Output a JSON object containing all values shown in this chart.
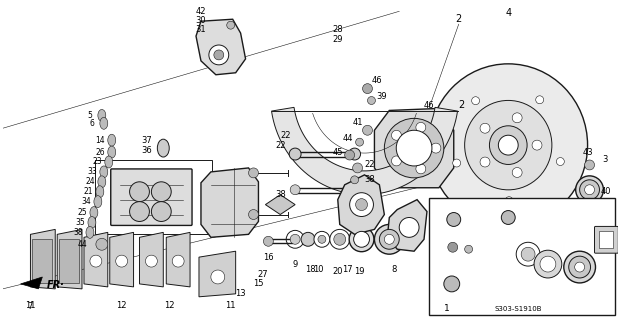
{
  "background_color": "#ffffff",
  "line_color": "#1a1a1a",
  "diagram_code": "S303-S1910B",
  "figsize": [
    6.21,
    3.2
  ],
  "dpi": 100
}
